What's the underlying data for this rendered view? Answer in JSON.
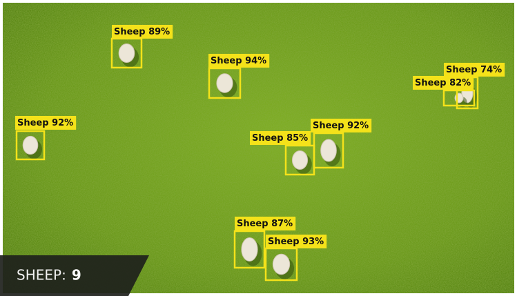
{
  "detections": [
    {
      "label": "Sheep 89%"
    },
    {
      "label": "Sheep 94%"
    },
    {
      "label": "Sheep 74%"
    },
    {
      "label": "Sheep 82%"
    },
    {
      "label": "Sheep 92%"
    },
    {
      "label": "Sheep 85%"
    },
    {
      "label": "Sheep 92%"
    },
    {
      "label": "Sheep 87%"
    },
    {
      "label": "Sheep 93%"
    }
  ],
  "counter": {
    "label": "SHEEP:",
    "count": 9
  }
}
